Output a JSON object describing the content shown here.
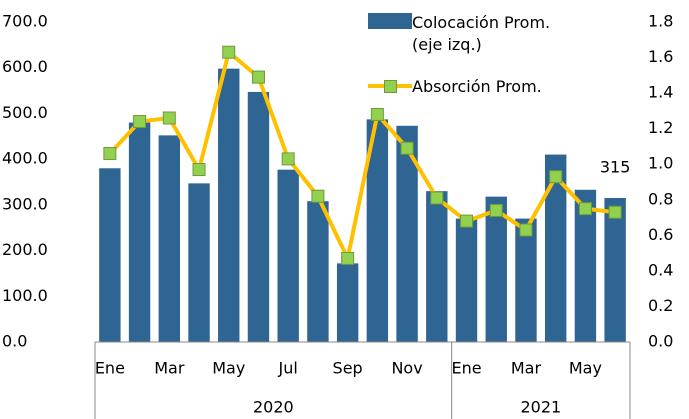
{
  "chart_data": {
    "type": "bar-line",
    "categories": [
      "Ene",
      null,
      "Mar",
      null,
      "May",
      null,
      "Jul",
      null,
      "Sep",
      null,
      "Nov",
      null,
      "Ene",
      null,
      "Mar",
      null,
      "May",
      null
    ],
    "x_groups": [
      {
        "label": "2020",
        "size": 12
      },
      {
        "label": "2021",
        "size": 6
      }
    ],
    "series": [
      {
        "name": "Colocación Prom. (eje izq.)",
        "color": "#2e6593",
        "type": "bar",
        "values": [
          380,
          480,
          452,
          347,
          598,
          547,
          377,
          308,
          172,
          487,
          473,
          330,
          270,
          318,
          270,
          410,
          333,
          315
        ],
        "value_labels": [
          null,
          null,
          null,
          null,
          null,
          null,
          null,
          null,
          null,
          null,
          null,
          null,
          null,
          null,
          null,
          null,
          null,
          "315"
        ]
      },
      {
        "name": "Absorción Prom.",
        "color": "#ffc000",
        "marker_color": "#92d050",
        "type": "line",
        "axis": "y2",
        "values": [
          1.06,
          1.24,
          1.26,
          0.97,
          1.63,
          1.49,
          1.03,
          0.82,
          0.47,
          1.28,
          1.09,
          0.81,
          0.68,
          0.74,
          0.63,
          0.93,
          0.75,
          0.73
        ]
      }
    ],
    "ylim": [
      0,
      700
    ],
    "yticks": [
      {
        "value": 0,
        "label": "0.0"
      },
      {
        "value": 100,
        "label": "100.0"
      },
      {
        "value": 200,
        "label": "200.0"
      },
      {
        "value": 300,
        "label": "300.0"
      },
      {
        "value": 400,
        "label": "400.0"
      },
      {
        "value": 500,
        "label": "500.0"
      },
      {
        "value": 600,
        "label": "600.0"
      },
      {
        "value": 700,
        "label": "700.0"
      }
    ],
    "y2lim": [
      0,
      1.8
    ],
    "y2ticks": [
      {
        "value": 0,
        "label": "0.0"
      },
      0.2,
      0.4,
      0.6,
      0.8,
      {
        "value": 1,
        "label": "1.0"
      },
      1.2,
      1.4,
      1.6,
      1.8
    ],
    "legend": "top-right"
  }
}
